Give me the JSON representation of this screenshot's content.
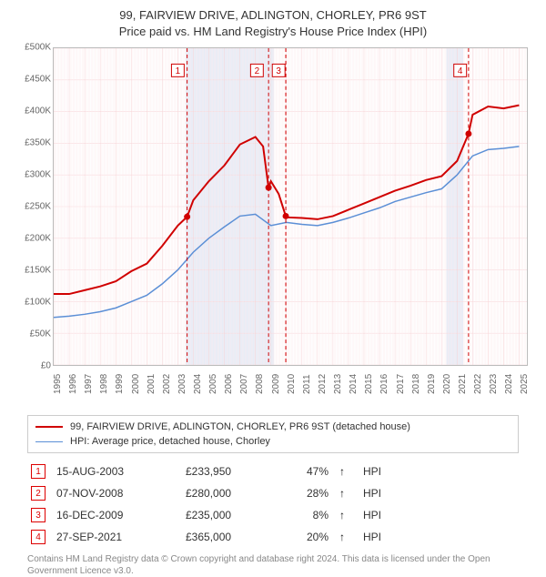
{
  "title": {
    "line1": "99, FAIRVIEW DRIVE, ADLINGTON, CHORLEY, PR6 9ST",
    "line2": "Price paid vs. HM Land Registry's House Price Index (HPI)"
  },
  "chart": {
    "type": "line",
    "background_color": "#ffffff",
    "grid_color": "#f8d7da",
    "grid_color_minor": "#fdecef",
    "shaded_band_color": "#e6edf7",
    "shaded_bands": [
      [
        2003.5,
        2009.2
      ],
      [
        2020.3,
        2021.4
      ]
    ],
    "xlim": [
      1995,
      2025.5
    ],
    "ylim": [
      0,
      500000
    ],
    "ytick_step": 50000,
    "yticks": [
      0,
      50000,
      100000,
      150000,
      200000,
      250000,
      300000,
      350000,
      400000,
      450000,
      500000
    ],
    "ytick_labels": [
      "£0",
      "£50K",
      "£100K",
      "£150K",
      "£200K",
      "£250K",
      "£300K",
      "£350K",
      "£400K",
      "£450K",
      "£500K"
    ],
    "xticks": [
      1995,
      1996,
      1997,
      1998,
      1999,
      2000,
      2001,
      2002,
      2003,
      2004,
      2005,
      2006,
      2007,
      2008,
      2009,
      2010,
      2011,
      2012,
      2013,
      2014,
      2015,
      2016,
      2017,
      2018,
      2019,
      2020,
      2021,
      2022,
      2023,
      2024,
      2025
    ],
    "series": [
      {
        "name": "property",
        "label": "99, FAIRVIEW DRIVE, ADLINGTON, CHORLEY, PR6 9ST (detached house)",
        "color": "#d00000",
        "line_width": 2,
        "points": [
          [
            1995,
            112000
          ],
          [
            1996,
            112000
          ],
          [
            1997,
            118000
          ],
          [
            1998,
            124000
          ],
          [
            1999,
            132000
          ],
          [
            2000,
            148000
          ],
          [
            2001,
            160000
          ],
          [
            2002,
            188000
          ],
          [
            2003,
            220000
          ],
          [
            2003.6,
            233950
          ],
          [
            2004,
            260000
          ],
          [
            2005,
            290000
          ],
          [
            2006,
            315000
          ],
          [
            2007,
            348000
          ],
          [
            2008,
            360000
          ],
          [
            2008.5,
            345000
          ],
          [
            2008.85,
            280000
          ],
          [
            2009,
            290000
          ],
          [
            2009.5,
            270000
          ],
          [
            2009.96,
            235000
          ],
          [
            2010,
            233000
          ],
          [
            2011,
            232000
          ],
          [
            2012,
            230000
          ],
          [
            2013,
            235000
          ],
          [
            2014,
            245000
          ],
          [
            2015,
            255000
          ],
          [
            2016,
            265000
          ],
          [
            2017,
            275000
          ],
          [
            2018,
            283000
          ],
          [
            2019,
            292000
          ],
          [
            2020,
            298000
          ],
          [
            2021,
            322000
          ],
          [
            2021.74,
            365000
          ],
          [
            2022,
            395000
          ],
          [
            2023,
            408000
          ],
          [
            2024,
            405000
          ],
          [
            2025,
            410000
          ]
        ]
      },
      {
        "name": "hpi",
        "label": "HPI: Average price, detached house, Chorley",
        "color": "#5b8fd6",
        "line_width": 1.5,
        "points": [
          [
            1995,
            75000
          ],
          [
            1996,
            77000
          ],
          [
            1997,
            80000
          ],
          [
            1998,
            84000
          ],
          [
            1999,
            90000
          ],
          [
            2000,
            100000
          ],
          [
            2001,
            110000
          ],
          [
            2002,
            128000
          ],
          [
            2003,
            150000
          ],
          [
            2004,
            178000
          ],
          [
            2005,
            200000
          ],
          [
            2006,
            218000
          ],
          [
            2007,
            235000
          ],
          [
            2008,
            238000
          ],
          [
            2009,
            220000
          ],
          [
            2010,
            225000
          ],
          [
            2011,
            222000
          ],
          [
            2012,
            220000
          ],
          [
            2013,
            225000
          ],
          [
            2014,
            232000
          ],
          [
            2015,
            240000
          ],
          [
            2016,
            248000
          ],
          [
            2017,
            258000
          ],
          [
            2018,
            265000
          ],
          [
            2019,
            272000
          ],
          [
            2020,
            278000
          ],
          [
            2021,
            300000
          ],
          [
            2022,
            330000
          ],
          [
            2023,
            340000
          ],
          [
            2024,
            342000
          ],
          [
            2025,
            345000
          ]
        ]
      }
    ],
    "markers": [
      {
        "n": "1",
        "x": 2003.6,
        "y": 233950,
        "label_x": 2003.0,
        "label_y": 465000
      },
      {
        "n": "2",
        "x": 2008.85,
        "y": 280000,
        "label_x": 2008.1,
        "label_y": 465000
      },
      {
        "n": "3",
        "x": 2009.96,
        "y": 235000,
        "label_x": 2009.5,
        "label_y": 465000
      },
      {
        "n": "4",
        "x": 2021.74,
        "y": 365000,
        "label_x": 2021.2,
        "label_y": 465000
      }
    ],
    "marker_color": "#d00000",
    "marker_dash": "4 3",
    "label_fontsize": 10
  },
  "legend": {
    "rows": [
      {
        "color": "#d00000",
        "width": 2,
        "label": "99, FAIRVIEW DRIVE, ADLINGTON, CHORLEY, PR6 9ST (detached house)"
      },
      {
        "color": "#5b8fd6",
        "width": 1.5,
        "label": "HPI: Average price, detached house, Chorley"
      }
    ]
  },
  "sales": [
    {
      "n": "1",
      "date": "15-AUG-2003",
      "price": "£233,950",
      "pct": "47%",
      "dir": "↑",
      "suffix": "HPI"
    },
    {
      "n": "2",
      "date": "07-NOV-2008",
      "price": "£280,000",
      "pct": "28%",
      "dir": "↑",
      "suffix": "HPI"
    },
    {
      "n": "3",
      "date": "16-DEC-2009",
      "price": "£235,000",
      "pct": "8%",
      "dir": "↑",
      "suffix": "HPI"
    },
    {
      "n": "4",
      "date": "27-SEP-2021",
      "price": "£365,000",
      "pct": "20%",
      "dir": "↑",
      "suffix": "HPI"
    }
  ],
  "copyright": "Contains HM Land Registry data © Crown copyright and database right 2024. This data is licensed under the Open Government Licence v3.0."
}
